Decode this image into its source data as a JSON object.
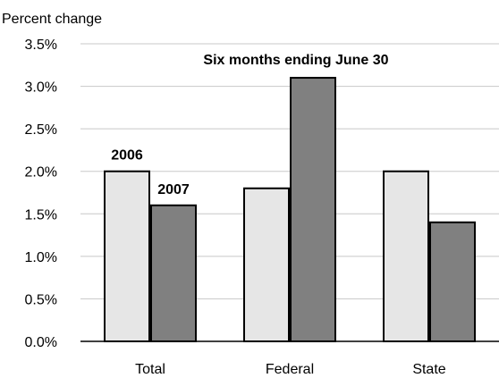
{
  "chart_data": {
    "type": "bar",
    "ylabel": "Percent change",
    "title": "Six months ending June 30",
    "categories": [
      "Total",
      "Federal",
      "State"
    ],
    "series": [
      {
        "name": "2006",
        "values": [
          2.0,
          1.8,
          2.0
        ],
        "color": "#e6e6e6"
      },
      {
        "name": "2007",
        "values": [
          1.6,
          3.1,
          1.4
        ],
        "color": "#808080"
      }
    ],
    "ylim": [
      0,
      3.5
    ],
    "yticks": [
      "0.0%",
      "0.5%",
      "1.0%",
      "1.5%",
      "2.0%",
      "2.5%",
      "3.0%",
      "3.5%"
    ],
    "grid": true,
    "legend": "inline labels over first category"
  }
}
